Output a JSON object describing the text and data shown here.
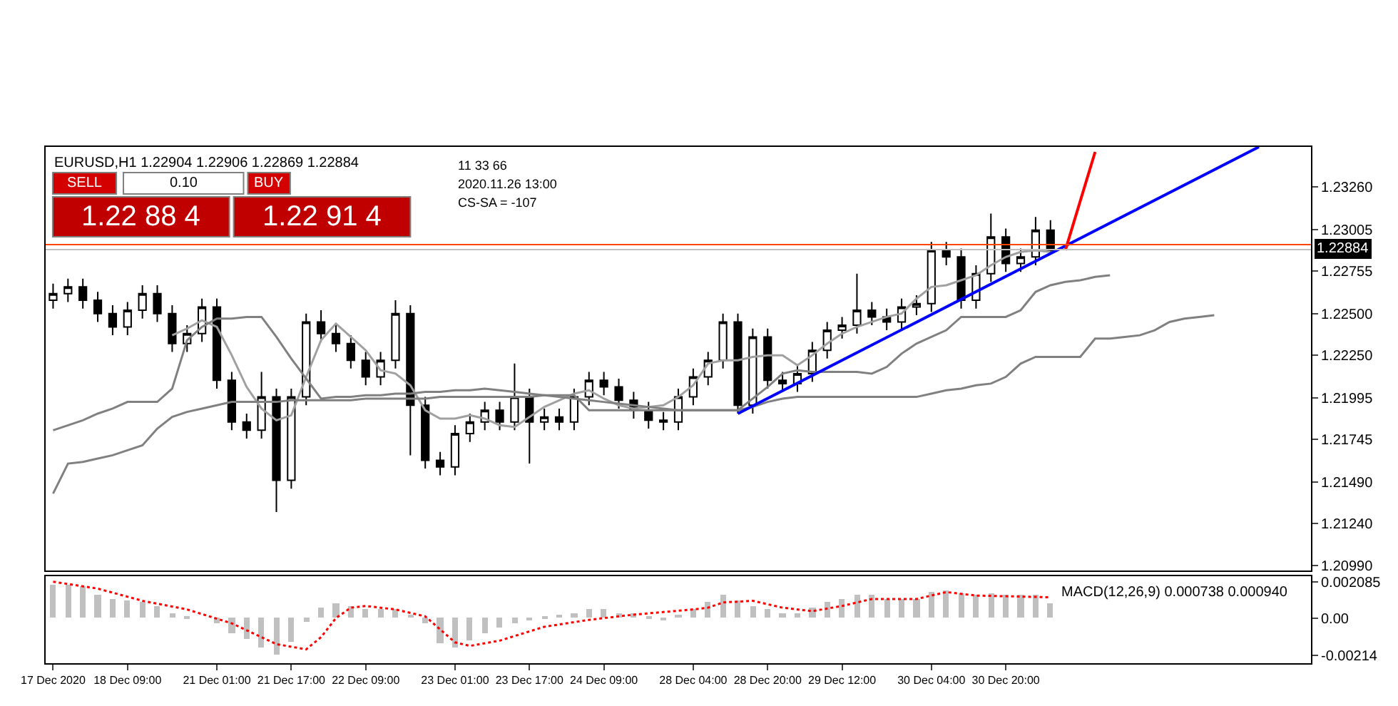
{
  "chart_data": [
    {
      "type": "candlestick",
      "title": "EURUSD,H1 1.22904 1.22906 1.22869 1.22884",
      "ohlc": [
        [
          1.2258,
          1.2268,
          1.2253,
          1.2262
        ],
        [
          1.2262,
          1.2271,
          1.2257,
          1.2266
        ],
        [
          1.2266,
          1.2271,
          1.2253,
          1.2258
        ],
        [
          1.2258,
          1.2263,
          1.2245,
          1.225
        ],
        [
          1.225,
          1.2255,
          1.2237,
          1.2242
        ],
        [
          1.2242,
          1.2257,
          1.2237,
          1.2252
        ],
        [
          1.2252,
          1.2267,
          1.2247,
          1.2262
        ],
        [
          1.2262,
          1.2267,
          1.2245,
          1.225
        ],
        [
          1.225,
          1.2255,
          1.2227,
          1.2232
        ],
        [
          1.2232,
          1.2243,
          1.2227,
          1.2238
        ],
        [
          1.2238,
          1.2259,
          1.2233,
          1.2254
        ],
        [
          1.2254,
          1.2259,
          1.2205,
          1.221
        ],
        [
          1.221,
          1.2215,
          1.218,
          1.2185
        ],
        [
          1.2185,
          1.219,
          1.2175,
          1.218
        ],
        [
          1.218,
          1.2215,
          1.2175,
          1.22
        ],
        [
          1.22,
          1.2205,
          1.2131,
          1.215
        ],
        [
          1.215,
          1.2205,
          1.2145,
          1.22
        ],
        [
          1.22,
          1.225,
          1.2195,
          1.2245
        ],
        [
          1.2245,
          1.2252,
          1.2233,
          1.2238
        ],
        [
          1.2238,
          1.2243,
          1.2227,
          1.2232
        ],
        [
          1.2232,
          1.2237,
          1.2217,
          1.2222
        ],
        [
          1.2222,
          1.2227,
          1.2207,
          1.2212
        ],
        [
          1.2212,
          1.2227,
          1.2207,
          1.2222
        ],
        [
          1.2222,
          1.2258,
          1.2217,
          1.225
        ],
        [
          1.225,
          1.2255,
          1.2165,
          1.2195
        ],
        [
          1.2195,
          1.22,
          1.2157,
          1.2162
        ],
        [
          1.2162,
          1.2167,
          1.2153,
          1.2158
        ],
        [
          1.2158,
          1.2183,
          1.2153,
          1.2178
        ],
        [
          1.2178,
          1.219,
          1.2173,
          1.2185
        ],
        [
          1.2185,
          1.2197,
          1.218,
          1.2192
        ],
        [
          1.2192,
          1.2197,
          1.218,
          1.2185
        ],
        [
          1.2185,
          1.222,
          1.218,
          1.22
        ],
        [
          1.22,
          1.2205,
          1.216,
          1.2185
        ],
        [
          1.2185,
          1.2193,
          1.218,
          1.2188
        ],
        [
          1.2188,
          1.2193,
          1.218,
          1.2185
        ],
        [
          1.2185,
          1.2205,
          1.218,
          1.22
        ],
        [
          1.22,
          1.2215,
          1.2195,
          1.221
        ],
        [
          1.221,
          1.2215,
          1.2201,
          1.2206
        ],
        [
          1.2206,
          1.2211,
          1.2193,
          1.2198
        ],
        [
          1.2198,
          1.2203,
          1.2187,
          1.2192
        ],
        [
          1.2192,
          1.2197,
          1.2181,
          1.2186
        ],
        [
          1.2186,
          1.2191,
          1.218,
          1.2185
        ],
        [
          1.2185,
          1.2205,
          1.218,
          1.22
        ],
        [
          1.22,
          1.2217,
          1.2195,
          1.2212
        ],
        [
          1.2212,
          1.2227,
          1.2207,
          1.2222
        ],
        [
          1.2222,
          1.225,
          1.2217,
          1.2245
        ],
        [
          1.2245,
          1.225,
          1.219,
          1.2195
        ],
        [
          1.2195,
          1.2241,
          1.219,
          1.2236
        ],
        [
          1.2236,
          1.2241,
          1.2205,
          1.221
        ],
        [
          1.221,
          1.2215,
          1.2203,
          1.2208
        ],
        [
          1.2208,
          1.2219,
          1.2203,
          1.2214
        ],
        [
          1.2214,
          1.2233,
          1.2209,
          1.2228
        ],
        [
          1.2228,
          1.2245,
          1.2223,
          1.224
        ],
        [
          1.224,
          1.2248,
          1.2235,
          1.2243
        ],
        [
          1.2243,
          1.2274,
          1.2238,
          1.2252
        ],
        [
          1.2252,
          1.2257,
          1.2243,
          1.2248
        ],
        [
          1.2248,
          1.2253,
          1.224,
          1.2245
        ],
        [
          1.2245,
          1.2259,
          1.224,
          1.2254
        ],
        [
          1.2254,
          1.2261,
          1.2249,
          1.2256
        ],
        [
          1.2256,
          1.2293,
          1.2251,
          1.2288
        ],
        [
          1.2288,
          1.2293,
          1.2279,
          1.2284
        ],
        [
          1.2284,
          1.2289,
          1.2253,
          1.2258
        ],
        [
          1.2258,
          1.2279,
          1.2253,
          1.2274
        ],
        [
          1.2274,
          1.231,
          1.2269,
          1.2296
        ],
        [
          1.2296,
          1.2301,
          1.2275,
          1.228
        ],
        [
          1.228,
          1.2289,
          1.2275,
          1.2284
        ],
        [
          1.2284,
          1.2308,
          1.2279,
          1.23
        ],
        [
          1.23,
          1.2306,
          1.2287,
          1.2288
        ],
        null,
        null,
        null,
        null,
        null,
        null,
        null,
        null,
        null,
        null,
        null,
        null,
        null,
        null,
        null,
        null,
        null
      ],
      "series": [
        {
          "type": "line",
          "color": "#a0a0a0",
          "values": [
            null,
            null,
            null,
            null,
            null,
            null,
            null,
            null,
            1.2237,
            1.2241,
            1.2246,
            1.2242,
            1.2225,
            1.2206,
            1.2193,
            1.2186,
            1.2189,
            1.2212,
            1.2234,
            1.2244,
            1.2236,
            1.2228,
            1.2216,
            1.2214,
            1.2207,
            1.2192,
            1.2187,
            1.2187,
            1.2189,
            1.2187,
            1.2183,
            1.2182,
            1.2188,
            1.2194,
            1.2198,
            1.2202,
            1.2204,
            1.2199,
            1.2195,
            1.2193,
            1.2194,
            1.2195,
            1.22,
            1.2207,
            1.222,
            1.2222,
            1.2222,
            1.2224,
            1.2225,
            1.2225,
            1.2219,
            1.2225,
            1.2232,
            1.2238,
            1.2242,
            1.2245,
            1.2248,
            1.225,
            1.2259,
            1.2266,
            1.2267,
            1.227,
            1.2273,
            1.2279,
            1.2284,
            1.2287,
            1.2288,
            1.2287,
            null,
            null,
            null,
            null,
            null,
            null,
            null,
            null,
            null,
            null,
            null,
            null,
            null,
            null,
            null,
            null,
            null
          ]
        },
        {
          "type": "line",
          "color": "#808080",
          "values": [
            1.2142,
            1.216,
            1.2161,
            1.2163,
            1.2165,
            1.2168,
            1.2171,
            1.2181,
            1.2188,
            1.2191,
            1.2193,
            1.2195,
            1.2197,
            1.2197,
            1.2197,
            1.2197,
            1.2198,
            1.2198,
            1.2198,
            1.2198,
            1.2198,
            1.2199,
            1.2199,
            1.2199,
            1.2199,
            1.2199,
            1.22,
            1.22,
            1.22,
            1.22,
            1.22,
            1.22,
            1.22,
            1.2201,
            1.2201,
            1.2201,
            1.2192,
            1.2192,
            1.2192,
            1.2192,
            1.2192,
            1.2192,
            1.2192,
            1.2192,
            1.2192,
            1.2192,
            1.2192,
            1.2194,
            1.2197,
            1.2199,
            1.22,
            1.22,
            1.22,
            1.22,
            1.22,
            1.22,
            1.22,
            1.22,
            1.22,
            1.2202,
            1.2204,
            1.2205,
            1.2207,
            1.2208,
            1.2212,
            1.222,
            1.2224,
            1.2224,
            1.2224,
            1.2224,
            1.2235,
            1.2235,
            1.2236,
            1.2237,
            1.224,
            1.2245,
            1.2247,
            1.2248,
            1.2249,
            null,
            null,
            null,
            null,
            null,
            null
          ]
        },
        {
          "type": "line",
          "color": "#808080",
          "values": [
            1.218,
            1.2183,
            1.2186,
            1.219,
            1.2193,
            1.2197,
            1.2197,
            1.2197,
            1.2205,
            1.2234,
            1.2242,
            1.2247,
            1.2247,
            1.2248,
            1.2248,
            1.2236,
            1.2223,
            1.2211,
            1.2199,
            1.22,
            1.22,
            1.2201,
            1.2201,
            1.2202,
            1.2202,
            1.2203,
            1.2203,
            1.2204,
            1.2204,
            1.2205,
            1.2204,
            1.2203,
            1.2202,
            1.2201,
            1.22,
            1.2199,
            1.2198,
            1.2197,
            1.2196,
            1.2195,
            1.2194,
            1.2193,
            1.2192,
            1.2192,
            1.2192,
            1.2192,
            1.2192,
            1.2199,
            1.2206,
            1.2214,
            1.2216,
            1.2215,
            1.2215,
            1.2215,
            1.2215,
            1.2214,
            1.2218,
            1.2226,
            1.2232,
            1.2236,
            1.224,
            1.2248,
            1.2248,
            1.2248,
            1.2248,
            1.2252,
            1.2263,
            1.2267,
            1.2269,
            1.227,
            1.2272,
            1.2273,
            null,
            null,
            null,
            null,
            null,
            null,
            null,
            null,
            null,
            null,
            null,
            null,
            null
          ]
        },
        {
          "type": "line",
          "color": "#0000ff",
          "values": [
            null,
            null,
            null,
            null,
            null,
            null,
            null,
            null,
            null,
            null,
            null,
            null,
            null,
            null,
            null,
            null,
            null,
            null,
            null,
            null,
            null,
            null,
            null,
            null,
            null,
            null,
            null,
            null,
            null,
            null,
            null,
            null,
            null,
            null,
            null,
            null,
            null,
            null,
            null,
            null,
            null,
            null,
            null,
            null,
            null,
            null,
            1.219,
            null,
            null,
            null,
            null,
            null,
            null,
            null,
            null,
            null,
            null,
            null,
            null,
            null,
            null,
            null,
            null,
            null,
            null,
            null,
            null,
            null,
            null,
            null,
            null,
            null,
            null,
            null,
            null,
            null,
            null,
            null,
            null,
            null,
            null,
            1.235,
            null,
            null,
            null
          ]
        },
        {
          "type": "line",
          "color": "#ff0000",
          "values": [
            null,
            null,
            null,
            null,
            null,
            null,
            null,
            null,
            null,
            null,
            null,
            null,
            null,
            null,
            null,
            null,
            null,
            null,
            null,
            null,
            null,
            null,
            null,
            null,
            null,
            null,
            null,
            null,
            null,
            null,
            null,
            null,
            null,
            null,
            null,
            null,
            null,
            null,
            null,
            null,
            null,
            null,
            null,
            null,
            null,
            null,
            null,
            null,
            null,
            null,
            null,
            null,
            null,
            null,
            null,
            null,
            null,
            null,
            null,
            null,
            null,
            null,
            null,
            null,
            null,
            null,
            null,
            null,
            1.2288,
            null,
            1.2347,
            null,
            null,
            null,
            null,
            null,
            null,
            null,
            null,
            null,
            null,
            null,
            null,
            null,
            null
          ]
        }
      ],
      "ylim": [
        1.2096,
        1.235
      ],
      "yticks": [
        {
          "value": 1.2326,
          "label": "1.23260"
        },
        {
          "value": 1.23005,
          "label": "1.23005"
        },
        {
          "value": 1.22755,
          "label": "1.22755"
        },
        {
          "value": 1.225,
          "label": "1.22500"
        },
        {
          "value": 1.2225,
          "label": "1.22250"
        },
        {
          "value": 1.21995,
          "label": "1.21995"
        },
        {
          "value": 1.21745,
          "label": "1.21745"
        },
        {
          "value": 1.2149,
          "label": "1.21490"
        },
        {
          "value": 1.2124,
          "label": "1.21240"
        },
        {
          "value": 1.2099,
          "label": "1.20990"
        }
      ],
      "tick_labels": "y",
      "ref_lines": [
        {
          "axis": "y",
          "value": 1.22914,
          "label": null,
          "color": "#ff4500"
        },
        {
          "axis": "y",
          "value": 1.22884,
          "label": "1.22884",
          "color": "#c0c0c0"
        }
      ],
      "annotations": [
        "SELL",
        "0.10",
        "BUY",
        "1.22 88 4",
        "1.22 91 4",
        "11 33 66",
        "2020.11.26 13:00",
        "CS-SA = -107"
      ]
    },
    {
      "type": "bar",
      "title": "MACD(12,26,9) 0.000738 0.000940",
      "categories": [
        "17 Dec 2020",
        null,
        null,
        null,
        null,
        "18 Dec 09:00",
        null,
        null,
        null,
        null,
        null,
        "21 Dec 01:00",
        null,
        null,
        null,
        null,
        "21 Dec 17:00",
        null,
        null,
        null,
        null,
        "22 Dec 09:00",
        null,
        null,
        null,
        null,
        null,
        "23 Dec 01:00",
        null,
        null,
        null,
        null,
        "23 Dec 17:00",
        null,
        null,
        null,
        null,
        "24 Dec 09:00",
        null,
        null,
        null,
        null,
        null,
        "28 Dec 04:00",
        null,
        null,
        null,
        null,
        "28 Dec 20:00",
        null,
        null,
        null,
        null,
        "29 Dec 12:00",
        null,
        null,
        null,
        null,
        null,
        "30 Dec 04:00",
        null,
        null,
        null,
        null,
        "30 Dec 20:00",
        null,
        null,
        null,
        null,
        null,
        null,
        null,
        null,
        null,
        null,
        null,
        null,
        null,
        null,
        null,
        null,
        null,
        null,
        null,
        null
      ],
      "series": [
        {
          "color": "#c0c0c0",
          "values": [
            0.0019,
            0.0019,
            0.0018,
            0.0013,
            0.0011,
            0.001,
            0.0009,
            0.0007,
            0.0003,
            0.0001,
            0.0,
            -0.0003,
            -0.0009,
            -0.0012,
            -0.0017,
            -0.0021,
            -0.0014,
            -0.0002,
            0.0006,
            0.0008,
            0.0007,
            0.0005,
            0.0005,
            0.0005,
            0.0002,
            -0.0003,
            -0.0015,
            -0.0017,
            -0.0013,
            -0.0009,
            -0.0006,
            -0.0003,
            -0.0001,
            0.0001,
            0.0002,
            0.0003,
            0.0005,
            0.0005,
            0.0003,
            0.0003,
            0.0001,
            -0.0001,
            0.0002,
            0.0005,
            0.0009,
            0.0013,
            0.001,
            0.0007,
            0.0005,
            0.0003,
            0.0003,
            0.0006,
            0.0009,
            0.0011,
            0.0013,
            0.0013,
            0.0011,
            0.0011,
            0.0011,
            0.0015,
            0.0016,
            0.0014,
            0.0013,
            0.0014,
            0.0013,
            0.0013,
            0.0013,
            0.0008,
            null,
            null,
            null,
            null,
            null,
            null,
            null,
            null,
            null,
            null,
            null,
            null,
            null,
            null,
            null,
            null,
            null
          ]
        },
        {
          "type": "line",
          "color": "#ff0000",
          "line_style": "dotted",
          "values": [
            0.0021,
            null,
            null,
            0.0017,
            null,
            null,
            0.001,
            null,
            null,
            0.0005,
            null,
            null,
            -0.0003,
            null,
            null,
            -0.0015,
            null,
            -0.0018,
            -0.0011,
            0.0,
            0.0006,
            0.0007,
            null,
            0.0005,
            null,
            0.0001,
            null,
            -0.0014,
            -0.0016,
            null,
            -0.0013,
            null,
            null,
            -0.0005,
            null,
            null,
            -0.0001,
            null,
            null,
            0.0002,
            null,
            null,
            null,
            0.0005,
            0.0006,
            0.0009,
            null,
            0.001,
            null,
            0.0006,
            null,
            0.0004,
            null,
            0.0007,
            null,
            0.0011,
            null,
            null,
            0.0011,
            null,
            0.0015,
            null,
            0.0013,
            null,
            null,
            null,
            null,
            0.0012,
            null,
            null,
            null,
            null,
            null,
            null,
            null,
            null,
            null,
            null,
            null,
            null,
            null,
            null,
            null,
            null,
            null
          ]
        }
      ],
      "ylim": [
        -0.0026,
        0.0024
      ],
      "yticks": [
        0.002085,
        {
          "value": 0,
          "label": "0.00"
        },
        -0.00214
      ]
    }
  ]
}
